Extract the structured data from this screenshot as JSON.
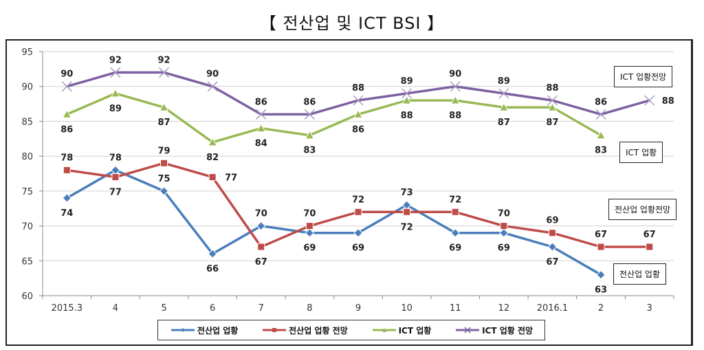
{
  "chart_data": {
    "type": "line",
    "title": "【 전산업 및 ICT BSI 】",
    "xlabel": "",
    "ylabel": "",
    "categories": [
      "2015.3",
      "4",
      "5",
      "6",
      "7",
      "8",
      "9",
      "10",
      "11",
      "12",
      "2016.1",
      "2",
      "3"
    ],
    "ylim": [
      60,
      95
    ],
    "yticks": [
      60,
      65,
      70,
      75,
      80,
      85,
      90,
      95
    ],
    "grid": true,
    "legend_position": "bottom",
    "series": [
      {
        "name": "전산업 업황",
        "color": "#4a7ebb",
        "marker": "diamond",
        "values": [
          74,
          78,
          75,
          66,
          70,
          69,
          69,
          73,
          69,
          69,
          67,
          63,
          null
        ],
        "label_pos": [
          "below",
          "above",
          "above",
          "below",
          "above",
          "below",
          "below",
          "above",
          "below",
          "below",
          "below",
          "below",
          null
        ]
      },
      {
        "name": "전산업 업황 전망",
        "color": "#be4b48",
        "marker": "square",
        "values": [
          78,
          77,
          79,
          77,
          67,
          70,
          72,
          72,
          72,
          70,
          69,
          67,
          67
        ],
        "label_pos": [
          "above",
          "below",
          "above",
          "right",
          "below",
          "above",
          "above",
          "below",
          "above",
          "above",
          "above",
          "above",
          "above"
        ]
      },
      {
        "name": "ICT 업황",
        "color": "#98b954",
        "marker": "triangle",
        "values": [
          86,
          89,
          87,
          82,
          84,
          83,
          86,
          88,
          88,
          87,
          87,
          83,
          null
        ],
        "label_pos": [
          "below",
          "below",
          "below",
          "below",
          "below",
          "below",
          "below",
          "below",
          "below",
          "below",
          "below",
          "below",
          null
        ]
      },
      {
        "name": "ICT 업황 전망",
        "color": "#7d60a0",
        "marker": "x",
        "values": [
          90,
          92,
          92,
          90,
          86,
          86,
          88,
          89,
          90,
          89,
          88,
          86,
          88
        ],
        "label_pos": [
          "above",
          "above",
          "above",
          "above",
          "above",
          "above",
          "above",
          "above",
          "above",
          "above",
          "above",
          "above",
          "right"
        ]
      }
    ],
    "annotations": [
      {
        "text": "ICT 업황전망",
        "series": "ICT 업황 전망"
      },
      {
        "text": "ICT 업황",
        "series": "ICT 업황"
      },
      {
        "text": "전산업 업황전망",
        "series": "전산업 업황 전망"
      },
      {
        "text": "전산업 업황",
        "series": "전산업 업황"
      }
    ]
  }
}
